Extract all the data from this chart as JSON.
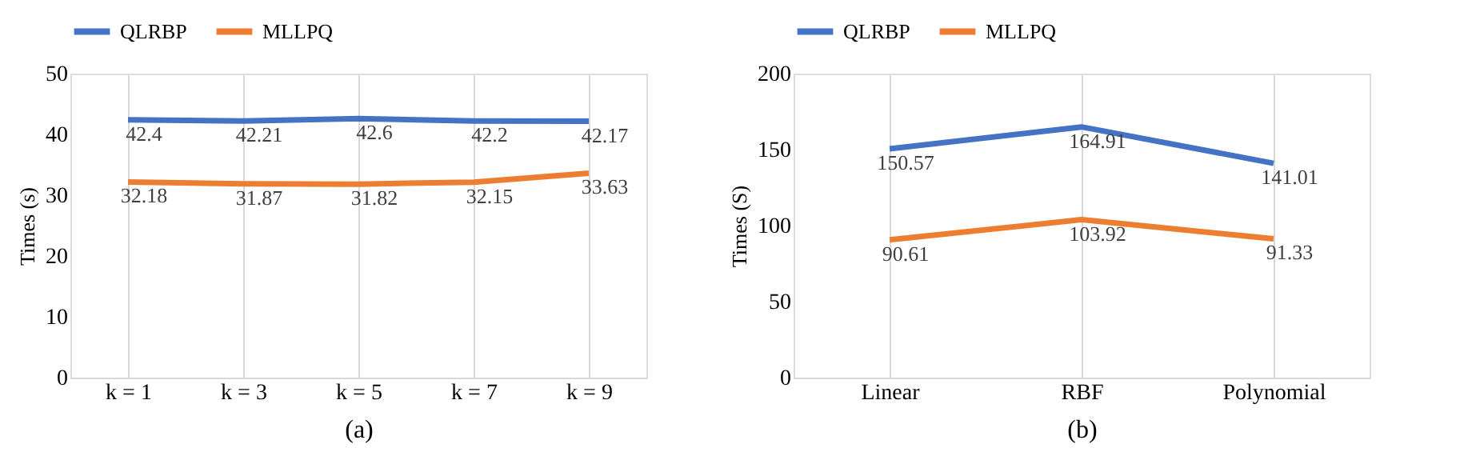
{
  "chart_data": [
    {
      "type": "line",
      "xlabel": "(a)",
      "ylabel": "Times (s)",
      "categories": [
        "k = 1",
        "k = 3",
        "k = 5",
        "k = 7",
        "k = 9"
      ],
      "ylim": [
        0,
        50
      ],
      "yticks": [
        0,
        10,
        20,
        30,
        40,
        50
      ],
      "grid": "x",
      "legend": "top",
      "data_labels": true,
      "marker": "none",
      "line_style": "solid",
      "series": [
        {
          "name": "QLRBP",
          "color": "#4472c4",
          "values": [
            42.4,
            42.21,
            42.6,
            42.2,
            42.17
          ]
        },
        {
          "name": "MLLPQ",
          "color": "#ed7d31",
          "values": [
            32.18,
            31.87,
            31.82,
            32.15,
            33.63
          ]
        }
      ]
    },
    {
      "type": "line",
      "xlabel": "(b)",
      "ylabel": "Times (S)",
      "categories": [
        "Linear",
        "RBF",
        "Polynomial"
      ],
      "ylim": [
        0,
        200
      ],
      "yticks": [
        0,
        50,
        100,
        150,
        200
      ],
      "grid": "x",
      "legend": "top",
      "data_labels": true,
      "marker": "none",
      "line_style": "solid",
      "series": [
        {
          "name": "QLRBP",
          "color": "#4472c4",
          "values": [
            150.57,
            164.91,
            141.01
          ]
        },
        {
          "name": "MLLPQ",
          "color": "#ed7d31",
          "values": [
            90.61,
            103.92,
            91.33
          ]
        }
      ]
    }
  ]
}
